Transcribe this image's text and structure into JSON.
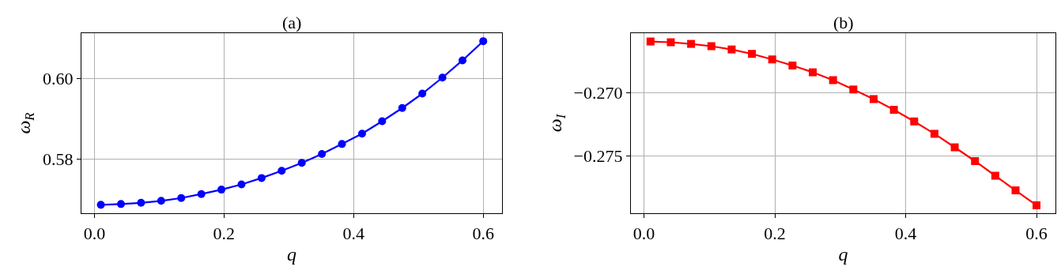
{
  "chart_data": [
    {
      "type": "line",
      "title": "(a)",
      "xlabel": "q",
      "ylabel": "ω$_{R}$",
      "x": [
        0.01,
        0.041,
        0.072,
        0.103,
        0.134,
        0.165,
        0.196,
        0.227,
        0.258,
        0.289,
        0.32,
        0.351,
        0.382,
        0.413,
        0.444,
        0.475,
        0.506,
        0.537,
        0.568,
        0.6
      ],
      "series": [
        {
          "color": "#0000ff",
          "marker": "circle",
          "line_style": "solid",
          "values": [
            0.5685,
            0.5687,
            0.569,
            0.5695,
            0.5702,
            0.5712,
            0.5723,
            0.5736,
            0.5752,
            0.577,
            0.579,
            0.5812,
            0.5837,
            0.5863,
            0.5894,
            0.5927,
            0.5963,
            0.6003,
            0.6046,
            0.6094
          ]
        }
      ],
      "xlim": [
        -0.02,
        0.629
      ],
      "xticks": [
        {
          "value": 0.0,
          "label": "0.0"
        },
        0.2,
        0.4,
        0.6
      ],
      "ylim": [
        0.5664,
        0.6114
      ],
      "yticks": [
        0.58,
        {
          "value": 0.6,
          "label": "0.60"
        }
      ],
      "grid": true
    },
    {
      "type": "line",
      "title": "(b)",
      "xlabel": "q",
      "ylabel": "ω$_{I}$",
      "x": [
        0.01,
        0.041,
        0.072,
        0.103,
        0.134,
        0.165,
        0.196,
        0.227,
        0.258,
        0.289,
        0.32,
        0.351,
        0.382,
        0.413,
        0.444,
        0.475,
        0.506,
        0.537,
        0.568,
        0.6
      ],
      "series": [
        {
          "color": "#ff0000",
          "marker": "square",
          "line_style": "solid",
          "values": [
            -0.26594,
            -0.266,
            -0.26613,
            -0.26631,
            -0.26657,
            -0.26692,
            -0.26736,
            -0.26784,
            -0.26838,
            -0.269,
            -0.26974,
            -0.2705,
            -0.27135,
            -0.27227,
            -0.27325,
            -0.27432,
            -0.27541,
            -0.27657,
            -0.27773,
            -0.27891
          ]
        }
      ],
      "xlim": [
        -0.02,
        0.629
      ],
      "xticks": [
        {
          "value": 0.0,
          "label": "0.0"
        },
        0.2,
        0.4,
        0.6
      ],
      "ylim": [
        -0.27954,
        -0.26528
      ],
      "yticks": [
        {
          "value": -0.27,
          "label": "−0.270"
        },
        {
          "value": -0.275,
          "label": "−0.275"
        }
      ],
      "grid": true
    }
  ]
}
